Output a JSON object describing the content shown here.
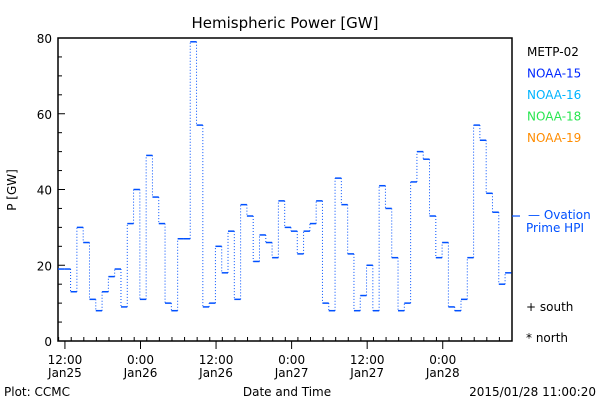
{
  "chart_data": {
    "type": "line",
    "title": "Hemispheric Power [GW]",
    "xlabel": "Date and Time",
    "ylabel": "P [GW]",
    "ylim": [
      0,
      80
    ],
    "yticks": [
      0,
      20,
      40,
      60,
      80
    ],
    "x_unit": "hours since 2015/01/25 12:00",
    "xlim": [
      -1.1,
      71
    ],
    "xticks": [
      {
        "hours": 0,
        "time": "12:00",
        "date": "Jan25"
      },
      {
        "hours": 12,
        "time": "0:00",
        "date": "Jan26"
      },
      {
        "hours": 24,
        "time": "12:00",
        "date": "Jan26"
      },
      {
        "hours": 36,
        "time": "0:00",
        "date": "Jan27"
      },
      {
        "hours": 48,
        "time": "12:00",
        "date": "Jan27"
      },
      {
        "hours": 60,
        "time": "0:00",
        "date": "Jan28"
      }
    ],
    "series": [
      {
        "name": "Hemispheric Power",
        "color": "#0050ff",
        "start_hour": -1.1,
        "step_hours": 1,
        "values": [
          19,
          19,
          13,
          30,
          26,
          11,
          8,
          13,
          17,
          19,
          9,
          31,
          40,
          11,
          49,
          38,
          31,
          10,
          8,
          27,
          27,
          79,
          57,
          9,
          10,
          25,
          18,
          29,
          11,
          36,
          33,
          21,
          28,
          26,
          22,
          37,
          30,
          29,
          23,
          29,
          31,
          37,
          10,
          8,
          43,
          36,
          23,
          8,
          12,
          20,
          8,
          41,
          35,
          22,
          8,
          10,
          42,
          50,
          48,
          33,
          22,
          26,
          9,
          8,
          11,
          22,
          57,
          53,
          39,
          34,
          15,
          18
        ]
      }
    ],
    "legend": [
      {
        "label": "METP-02",
        "color": "#000000"
      },
      {
        "label": "NOAA-15",
        "color": "#0028ff"
      },
      {
        "label": "NOAA-16",
        "color": "#00b4ff"
      },
      {
        "label": "NOAA-18",
        "color": "#28e650"
      },
      {
        "label": "NOAA-19",
        "color": "#ff8c00"
      }
    ],
    "ovation": {
      "label_line1": "— Ovation",
      "label_line2": "Prime HPI",
      "value": 33,
      "color": "#0050ff"
    },
    "markers": {
      "south": "+ south",
      "north": "* north"
    },
    "footer": {
      "left": "Plot: CCMC",
      "right": "2015/01/28 11:00:20"
    }
  }
}
